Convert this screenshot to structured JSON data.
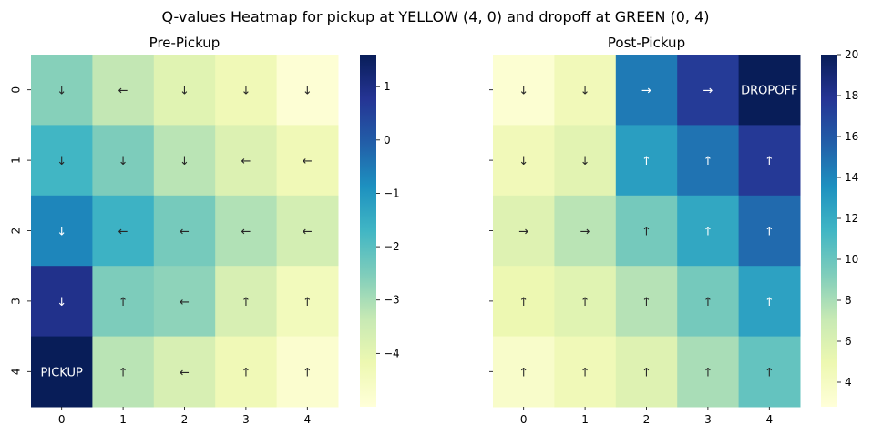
{
  "figure": {
    "title": "Q-values Heatmap for pickup at YELLOW (4, 0) and dropoff at GREEN (0, 4)"
  },
  "colors": {
    "colormap": "YlGnBu",
    "light_text": "#ffffff",
    "dark_text": "#262626"
  },
  "chart_data": [
    {
      "type": "heatmap",
      "title": "Pre-Pickup",
      "x_labels": [
        "0",
        "1",
        "2",
        "3",
        "4"
      ],
      "y_labels": [
        "0",
        "1",
        "2",
        "3",
        "4"
      ],
      "values": [
        [
          -2.6,
          -3.3,
          -3.9,
          -4.3,
          -4.9
        ],
        [
          -1.7,
          -2.5,
          -3.2,
          -3.8,
          -4.3
        ],
        [
          -0.7,
          -1.6,
          -2.4,
          -3.1,
          -3.6
        ],
        [
          0.9,
          -2.5,
          -2.7,
          -3.7,
          -4.4
        ],
        [
          1.6,
          -3.2,
          -3.7,
          -4.3,
          -4.8
        ]
      ],
      "annotations": [
        [
          "↓",
          "←",
          "↓",
          "↓",
          "↓"
        ],
        [
          "↓",
          "↓",
          "↓",
          "←",
          "←"
        ],
        [
          "↓",
          "←",
          "←",
          "←",
          "←"
        ],
        [
          "↓",
          "↑",
          "←",
          "↑",
          "↑"
        ],
        [
          "PICKUP",
          "↑",
          "←",
          "↑",
          "↑"
        ]
      ],
      "colorbar": {
        "range": [
          -5.0,
          1.6
        ],
        "ticks": [
          1,
          0,
          -1,
          -2,
          -3,
          -4
        ],
        "tick_labels": [
          "1",
          "0",
          "−1",
          "−2",
          "−3",
          "−4"
        ]
      }
    },
    {
      "type": "heatmap",
      "title": "Post-Pickup",
      "x_labels": [
        "0",
        "1",
        "2",
        "3",
        "4"
      ],
      "y_labels": [
        "0",
        "1",
        "2",
        "3",
        "4"
      ],
      "values": [
        [
          3.2,
          4.5,
          14.5,
          17.5,
          20.0
        ],
        [
          4.5,
          5.6,
          12.8,
          14.8,
          17.6
        ],
        [
          5.8,
          7.5,
          9.6,
          12.3,
          15.2
        ],
        [
          4.9,
          5.7,
          7.6,
          9.6,
          12.6
        ],
        [
          3.6,
          4.6,
          5.8,
          8.0,
          10.2
        ]
      ],
      "annotations": [
        [
          "↓",
          "↓",
          "→",
          "→",
          "DROPOFF"
        ],
        [
          "↓",
          "↓",
          "↑",
          "↑",
          "↑"
        ],
        [
          "→",
          "→",
          "↑",
          "↑",
          "↑"
        ],
        [
          "↑",
          "↑",
          "↑",
          "↑",
          "↑"
        ],
        [
          "↑",
          "↑",
          "↑",
          "↑",
          "↑"
        ]
      ],
      "colorbar": {
        "range": [
          2.8,
          20.0
        ],
        "ticks": [
          20,
          18,
          16,
          14,
          12,
          10,
          8,
          6,
          4
        ],
        "tick_labels": [
          "20",
          "18",
          "16",
          "14",
          "12",
          "10",
          "8",
          "6",
          "4"
        ]
      }
    }
  ]
}
